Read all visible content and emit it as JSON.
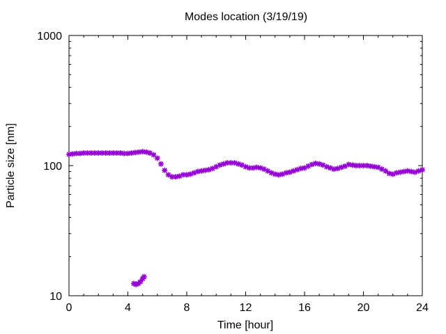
{
  "chart_data": {
    "type": "scatter",
    "title": "Modes location (3/19/19)",
    "xlabel": "Time [hour]",
    "ylabel": "Particle size [nm]",
    "xlim": [
      0,
      24
    ],
    "ylim": [
      10,
      1000
    ],
    "yscale": "log",
    "grid": false,
    "legend": "none",
    "color": "#9400d3",
    "x_ticks": [
      "0",
      "4",
      "8",
      "12",
      "16",
      "20",
      "24"
    ],
    "y_ticks": [
      "10",
      "100",
      "1000"
    ],
    "series": [
      {
        "points": [
          [
            0.0,
            122
          ],
          [
            0.25,
            123
          ],
          [
            0.5,
            124
          ],
          [
            0.75,
            124
          ],
          [
            1.0,
            125
          ],
          [
            1.25,
            125
          ],
          [
            1.5,
            125
          ],
          [
            1.75,
            125
          ],
          [
            2.0,
            125
          ],
          [
            2.25,
            125
          ],
          [
            2.5,
            125
          ],
          [
            2.75,
            125
          ],
          [
            3.0,
            125
          ],
          [
            3.25,
            125
          ],
          [
            3.5,
            125
          ],
          [
            3.75,
            124
          ],
          [
            4.0,
            124
          ],
          [
            4.25,
            125
          ],
          [
            4.5,
            126
          ],
          [
            4.75,
            127
          ],
          [
            5.0,
            128
          ],
          [
            5.25,
            127
          ],
          [
            5.5,
            125
          ],
          [
            5.75,
            121
          ],
          [
            6.0,
            114
          ],
          [
            6.25,
            103
          ],
          [
            6.5,
            92
          ],
          [
            6.75,
            85
          ],
          [
            7.0,
            82
          ],
          [
            7.25,
            82
          ],
          [
            7.5,
            83
          ],
          [
            7.75,
            85
          ],
          [
            8.0,
            85
          ],
          [
            8.25,
            86
          ],
          [
            8.5,
            88
          ],
          [
            8.75,
            90
          ],
          [
            9.0,
            91
          ],
          [
            9.25,
            92
          ],
          [
            9.5,
            93
          ],
          [
            9.75,
            95
          ],
          [
            10.0,
            98
          ],
          [
            10.25,
            101
          ],
          [
            10.5,
            103
          ],
          [
            10.75,
            105
          ],
          [
            11.0,
            105
          ],
          [
            11.25,
            105
          ],
          [
            11.5,
            103
          ],
          [
            11.75,
            101
          ],
          [
            12.0,
            98
          ],
          [
            12.25,
            96
          ],
          [
            12.5,
            96
          ],
          [
            12.75,
            97
          ],
          [
            13.0,
            96
          ],
          [
            13.25,
            94
          ],
          [
            13.5,
            91
          ],
          [
            13.75,
            88
          ],
          [
            14.0,
            86
          ],
          [
            14.25,
            85
          ],
          [
            14.5,
            86
          ],
          [
            14.75,
            88
          ],
          [
            15.0,
            89
          ],
          [
            15.25,
            91
          ],
          [
            15.5,
            93
          ],
          [
            15.75,
            95
          ],
          [
            16.0,
            96
          ],
          [
            16.25,
            99
          ],
          [
            16.5,
            102
          ],
          [
            16.75,
            104
          ],
          [
            17.0,
            103
          ],
          [
            17.25,
            101
          ],
          [
            17.5,
            98
          ],
          [
            17.75,
            96
          ],
          [
            18.0,
            94
          ],
          [
            18.25,
            95
          ],
          [
            18.5,
            97
          ],
          [
            18.75,
            99
          ],
          [
            19.0,
            102
          ],
          [
            19.25,
            101
          ],
          [
            19.5,
            100
          ],
          [
            19.75,
            100
          ],
          [
            20.0,
            100
          ],
          [
            20.25,
            100
          ],
          [
            20.5,
            99
          ],
          [
            20.75,
            98
          ],
          [
            21.0,
            97
          ],
          [
            21.25,
            94
          ],
          [
            21.5,
            91
          ],
          [
            21.75,
            87
          ],
          [
            22.0,
            86
          ],
          [
            22.25,
            88
          ],
          [
            22.5,
            89
          ],
          [
            22.75,
            90
          ],
          [
            23.0,
            91
          ],
          [
            23.25,
            90
          ],
          [
            23.5,
            89
          ],
          [
            23.75,
            91
          ],
          [
            24.0,
            93
          ],
          [
            4.4,
            12.4
          ],
          [
            4.55,
            12.2
          ],
          [
            4.7,
            12.4
          ],
          [
            4.85,
            12.8
          ],
          [
            5.0,
            13.5
          ],
          [
            5.1,
            14.0
          ]
        ]
      }
    ]
  }
}
